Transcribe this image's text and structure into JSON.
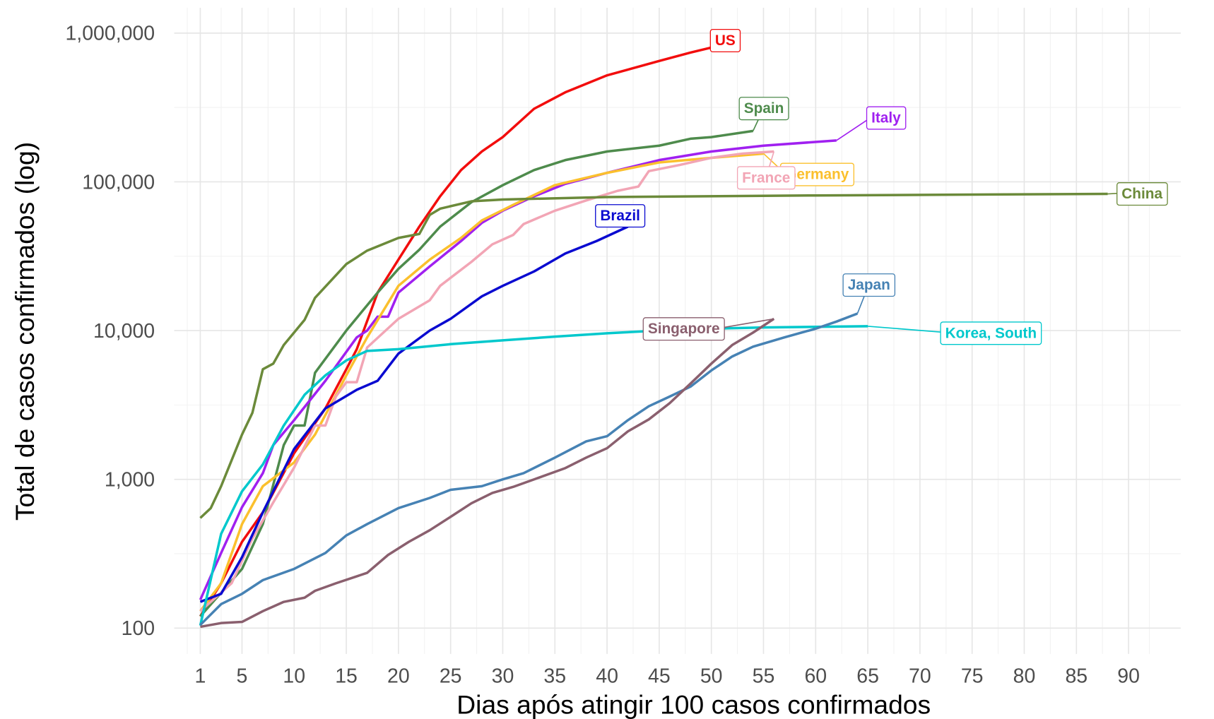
{
  "chart_data": {
    "type": "line",
    "y_scale": "log",
    "grid": true,
    "x_label": "Dias após atingir 100 casos confirmados",
    "y_label": "Total de casos confirmados (log)",
    "xlim": [
      -1.5,
      95
    ],
    "ylim": [
      67,
      1480000
    ],
    "xticks": [
      1,
      5,
      10,
      15,
      20,
      25,
      30,
      35,
      40,
      45,
      50,
      55,
      60,
      65,
      70,
      75,
      80,
      85,
      90
    ],
    "yticks": [
      100,
      {
        "value": 1000,
        "label": "1,000"
      },
      {
        "value": 10000,
        "label": "10,000"
      },
      {
        "value": 100000,
        "label": "100,000"
      },
      {
        "value": 1000000,
        "label": "1,000,000"
      }
    ],
    "series": [
      {
        "name": "US",
        "color": "#f20d0d",
        "x": [
          1,
          3,
          5,
          7,
          10,
          13,
          15,
          16,
          18,
          20,
          22,
          24,
          26,
          28,
          30,
          33,
          36,
          40,
          45,
          48,
          50
        ],
        "values": [
          120,
          200,
          380,
          600,
          1500,
          3000,
          5500,
          7500,
          18000,
          30000,
          50000,
          80000,
          120000,
          160000,
          200000,
          310000,
          400000,
          520000,
          650000,
          740000,
          800000
        ]
      },
      {
        "name": "Spain",
        "color": "#4e8b4c",
        "x": [
          1,
          5,
          7,
          9,
          10,
          11,
          12,
          15,
          18,
          20,
          22,
          24,
          27,
          30,
          33,
          36,
          40,
          45,
          48,
          50,
          54
        ],
        "values": [
          120,
          250,
          500,
          1700,
          2300,
          2300,
          5200,
          10000,
          18000,
          26000,
          35000,
          50000,
          73000,
          95000,
          120000,
          140000,
          160000,
          175000,
          195000,
          200000,
          220000
        ]
      },
      {
        "name": "Italy",
        "color": "#a020f0",
        "x": [
          1,
          3,
          5,
          7,
          8,
          10,
          13,
          16,
          17,
          18,
          19,
          20,
          23,
          26,
          28,
          30,
          33,
          36,
          40,
          45,
          50,
          55,
          62
        ],
        "values": [
          155,
          320,
          650,
          1100,
          1700,
          2500,
          4600,
          9000,
          10000,
          12400,
          12400,
          18000,
          27000,
          40000,
          53000,
          64000,
          80000,
          97000,
          115000,
          140000,
          160000,
          175000,
          190000
        ]
      },
      {
        "name": "Germany",
        "color": "#fbc02d",
        "x": [
          1,
          3,
          5,
          7,
          10,
          12,
          15,
          17,
          20,
          23,
          26,
          28,
          31,
          35,
          40,
          45,
          50,
          55
        ],
        "values": [
          130,
          200,
          500,
          900,
          1300,
          2000,
          5000,
          9000,
          20000,
          30000,
          42000,
          55000,
          70000,
          95000,
          115000,
          135000,
          145000,
          155000
        ]
      },
      {
        "name": "France",
        "color": "#f2a5b5",
        "x": [
          1,
          4,
          6,
          8,
          10,
          12,
          13,
          14,
          15,
          16,
          17,
          20,
          23,
          24,
          27,
          29,
          31,
          32,
          35,
          38,
          41,
          43,
          44,
          47,
          50,
          53,
          56
        ],
        "values": [
          130,
          200,
          400,
          700,
          1200,
          2300,
          2300,
          3600,
          4500,
          4500,
          7700,
          12000,
          16000,
          20000,
          29000,
          38000,
          44000,
          52000,
          64000,
          75000,
          87000,
          93000,
          118000,
          130000,
          145000,
          155000,
          160000
        ]
      },
      {
        "name": "China",
        "color": "#6b8a3a",
        "x": [
          1,
          2,
          3,
          5,
          6,
          7,
          8,
          9,
          11,
          12,
          15,
          17,
          20,
          22,
          23,
          24,
          27,
          30,
          40,
          60,
          88
        ],
        "values": [
          550,
          640,
          900,
          2000,
          2800,
          5500,
          6000,
          8000,
          11800,
          16600,
          28000,
          34500,
          42000,
          44600,
          60000,
          66000,
          74000,
          76000,
          79000,
          81000,
          83000
        ]
      },
      {
        "name": "Brazil",
        "color": "#0a0ad0",
        "x": [
          1,
          3,
          5,
          7,
          10,
          13,
          16,
          18,
          20,
          23,
          25,
          28,
          30,
          33,
          36,
          39,
          42
        ],
        "values": [
          150,
          170,
          300,
          600,
          1600,
          3000,
          4000,
          4600,
          7000,
          10000,
          12000,
          17000,
          20000,
          25000,
          33000,
          40000,
          50000
        ]
      },
      {
        "name": "Korea, South",
        "color": "#00c8cc",
        "x": [
          1,
          3,
          5,
          7,
          9,
          11,
          13,
          15,
          17,
          20,
          25,
          30,
          35,
          40,
          45,
          50,
          55,
          65
        ],
        "values": [
          104,
          430,
          830,
          1260,
          2300,
          3700,
          5000,
          6300,
          7300,
          7500,
          8100,
          8600,
          9100,
          9600,
          10000,
          10300,
          10500,
          10700
        ]
      },
      {
        "name": "Japan",
        "color": "#4682b4",
        "x": [
          1,
          3,
          5,
          7,
          10,
          13,
          15,
          17,
          20,
          23,
          25,
          28,
          30,
          32,
          35,
          38,
          40,
          42,
          44,
          46,
          48,
          50,
          52,
          54,
          57,
          60,
          62,
          64
        ],
        "values": [
          105,
          145,
          170,
          210,
          250,
          320,
          420,
          500,
          640,
          750,
          850,
          900,
          1000,
          1100,
          1400,
          1800,
          1950,
          2500,
          3100,
          3600,
          4200,
          5400,
          6700,
          7800,
          9000,
          10300,
          11500,
          13000
        ]
      },
      {
        "name": "Singapore",
        "color": "#8a5f6e",
        "x": [
          1,
          3,
          5,
          7,
          9,
          11,
          12,
          14,
          17,
          19,
          21,
          23,
          25,
          27,
          29,
          31,
          33,
          36,
          38,
          40,
          42,
          44,
          46,
          48,
          50,
          52,
          54,
          56
        ],
        "values": [
          102,
          108,
          110,
          130,
          150,
          160,
          178,
          200,
          235,
          310,
          380,
          455,
          560,
          690,
          810,
          890,
          1000,
          1190,
          1400,
          1620,
          2100,
          2530,
          3250,
          4400,
          6000,
          8000,
          9700,
          12000
        ]
      }
    ]
  }
}
